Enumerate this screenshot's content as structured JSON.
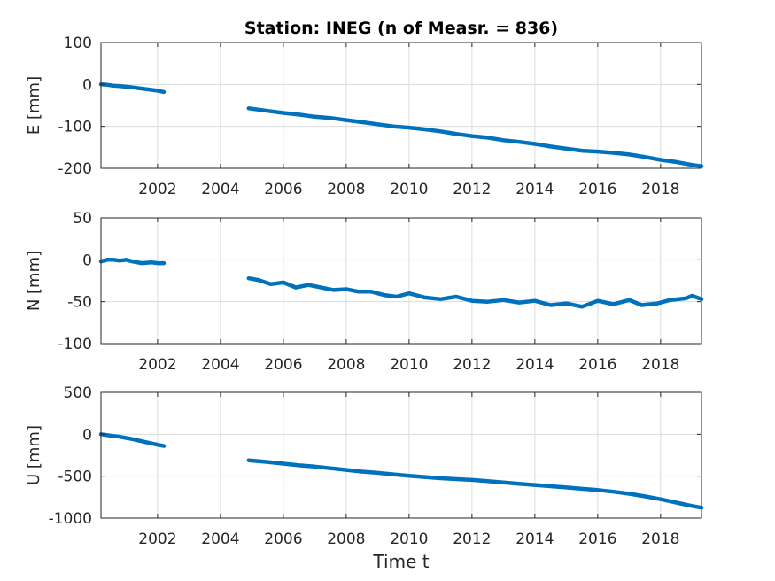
{
  "chart_data": [
    {
      "type": "line",
      "title": "Station: INEG (n of Measr. = 836)",
      "ylabel": "E [mm]",
      "xlabel": "",
      "xlim": [
        2000.2,
        2019.3
      ],
      "ylim": [
        -200,
        100
      ],
      "xticks": [
        2002,
        2004,
        2006,
        2008,
        2010,
        2012,
        2014,
        2016,
        2018
      ],
      "yticks": [
        100,
        0,
        -100,
        -200
      ],
      "grid": true,
      "series": [
        {
          "color": "#0072bd",
          "segments": [
            [
              [
                2000.2,
                0
              ],
              [
                2000.4,
                -1
              ],
              [
                2000.6,
                -3
              ],
              [
                2000.8,
                -4
              ],
              [
                2001.1,
                -6
              ],
              [
                2001.4,
                -9
              ],
              [
                2001.7,
                -12
              ],
              [
                2002.0,
                -15
              ],
              [
                2002.2,
                -18
              ]
            ],
            [
              [
                2004.9,
                -57
              ],
              [
                2005.5,
                -63
              ],
              [
                2006.0,
                -68
              ],
              [
                2006.5,
                -72
              ],
              [
                2007.0,
                -77
              ],
              [
                2007.5,
                -80
              ],
              [
                2008.0,
                -85
              ],
              [
                2008.5,
                -90
              ],
              [
                2009.0,
                -95
              ],
              [
                2009.5,
                -100
              ],
              [
                2010.0,
                -103
              ],
              [
                2010.5,
                -107
              ],
              [
                2011.0,
                -112
              ],
              [
                2011.5,
                -118
              ],
              [
                2012.0,
                -123
              ],
              [
                2012.5,
                -127
              ],
              [
                2013.0,
                -133
              ],
              [
                2013.5,
                -137
              ],
              [
                2014.0,
                -142
              ],
              [
                2014.5,
                -148
              ],
              [
                2015.0,
                -153
              ],
              [
                2015.5,
                -158
              ],
              [
                2016.0,
                -160
              ],
              [
                2016.5,
                -163
              ],
              [
                2017.0,
                -167
              ],
              [
                2017.5,
                -173
              ],
              [
                2018.0,
                -180
              ],
              [
                2018.5,
                -185
              ],
              [
                2019.0,
                -192
              ],
              [
                2019.3,
                -195
              ]
            ]
          ]
        }
      ]
    },
    {
      "type": "line",
      "ylabel": "N [mm]",
      "xlabel": "",
      "xlim": [
        2000.2,
        2019.3
      ],
      "ylim": [
        -100,
        50
      ],
      "xticks": [
        2002,
        2004,
        2006,
        2008,
        2010,
        2012,
        2014,
        2016,
        2018
      ],
      "yticks": [
        50,
        0,
        -50,
        -100
      ],
      "grid": true,
      "series": [
        {
          "color": "#0072bd",
          "segments": [
            [
              [
                2000.2,
                -2
              ],
              [
                2000.4,
                0
              ],
              [
                2000.6,
                0
              ],
              [
                2000.8,
                -1
              ],
              [
                2001.0,
                0
              ],
              [
                2001.2,
                -2
              ],
              [
                2001.5,
                -4
              ],
              [
                2001.8,
                -3
              ],
              [
                2002.0,
                -4
              ],
              [
                2002.2,
                -4
              ]
            ],
            [
              [
                2004.9,
                -22
              ],
              [
                2005.2,
                -24
              ],
              [
                2005.6,
                -29
              ],
              [
                2006.0,
                -27
              ],
              [
                2006.4,
                -33
              ],
              [
                2006.8,
                -30
              ],
              [
                2007.2,
                -33
              ],
              [
                2007.6,
                -36
              ],
              [
                2008.0,
                -35
              ],
              [
                2008.4,
                -38
              ],
              [
                2008.8,
                -38
              ],
              [
                2009.2,
                -42
              ],
              [
                2009.6,
                -44
              ],
              [
                2010.0,
                -40
              ],
              [
                2010.5,
                -45
              ],
              [
                2011.0,
                -47
              ],
              [
                2011.5,
                -44
              ],
              [
                2012.0,
                -49
              ],
              [
                2012.5,
                -50
              ],
              [
                2013.0,
                -48
              ],
              [
                2013.5,
                -51
              ],
              [
                2014.0,
                -49
              ],
              [
                2014.5,
                -54
              ],
              [
                2015.0,
                -52
              ],
              [
                2015.5,
                -56
              ],
              [
                2016.0,
                -49
              ],
              [
                2016.5,
                -53
              ],
              [
                2017.0,
                -48
              ],
              [
                2017.4,
                -54
              ],
              [
                2017.9,
                -52
              ],
              [
                2018.3,
                -48
              ],
              [
                2018.8,
                -46
              ],
              [
                2019.0,
                -43
              ],
              [
                2019.3,
                -47
              ]
            ]
          ]
        }
      ]
    },
    {
      "type": "line",
      "ylabel": "U [mm]",
      "xlabel": "Time t",
      "xlim": [
        2000.2,
        2019.3
      ],
      "ylim": [
        -1000,
        500
      ],
      "xticks": [
        2002,
        2004,
        2006,
        2008,
        2010,
        2012,
        2014,
        2016,
        2018
      ],
      "yticks": [
        500,
        0,
        -500,
        -1000
      ],
      "grid": true,
      "series": [
        {
          "color": "#0072bd",
          "segments": [
            [
              [
                2000.2,
                0
              ],
              [
                2000.5,
                -15
              ],
              [
                2000.8,
                -30
              ],
              [
                2001.1,
                -50
              ],
              [
                2001.4,
                -75
              ],
              [
                2001.7,
                -100
              ],
              [
                2002.0,
                -125
              ],
              [
                2002.2,
                -140
              ]
            ],
            [
              [
                2004.9,
                -310
              ],
              [
                2005.5,
                -330
              ],
              [
                2006.0,
                -350
              ],
              [
                2006.5,
                -370
              ],
              [
                2007.0,
                -385
              ],
              [
                2007.5,
                -405
              ],
              [
                2008.0,
                -425
              ],
              [
                2008.5,
                -445
              ],
              [
                2009.0,
                -460
              ],
              [
                2009.5,
                -478
              ],
              [
                2010.0,
                -495
              ],
              [
                2010.5,
                -510
              ],
              [
                2011.0,
                -525
              ],
              [
                2011.5,
                -535
              ],
              [
                2012.0,
                -545
              ],
              [
                2012.5,
                -560
              ],
              [
                2013.0,
                -575
              ],
              [
                2013.5,
                -590
              ],
              [
                2014.0,
                -605
              ],
              [
                2014.5,
                -620
              ],
              [
                2015.0,
                -635
              ],
              [
                2015.5,
                -650
              ],
              [
                2016.0,
                -665
              ],
              [
                2016.5,
                -685
              ],
              [
                2017.0,
                -710
              ],
              [
                2017.5,
                -740
              ],
              [
                2018.0,
                -775
              ],
              [
                2018.5,
                -815
              ],
              [
                2019.0,
                -855
              ],
              [
                2019.3,
                -875
              ]
            ]
          ]
        }
      ]
    }
  ]
}
